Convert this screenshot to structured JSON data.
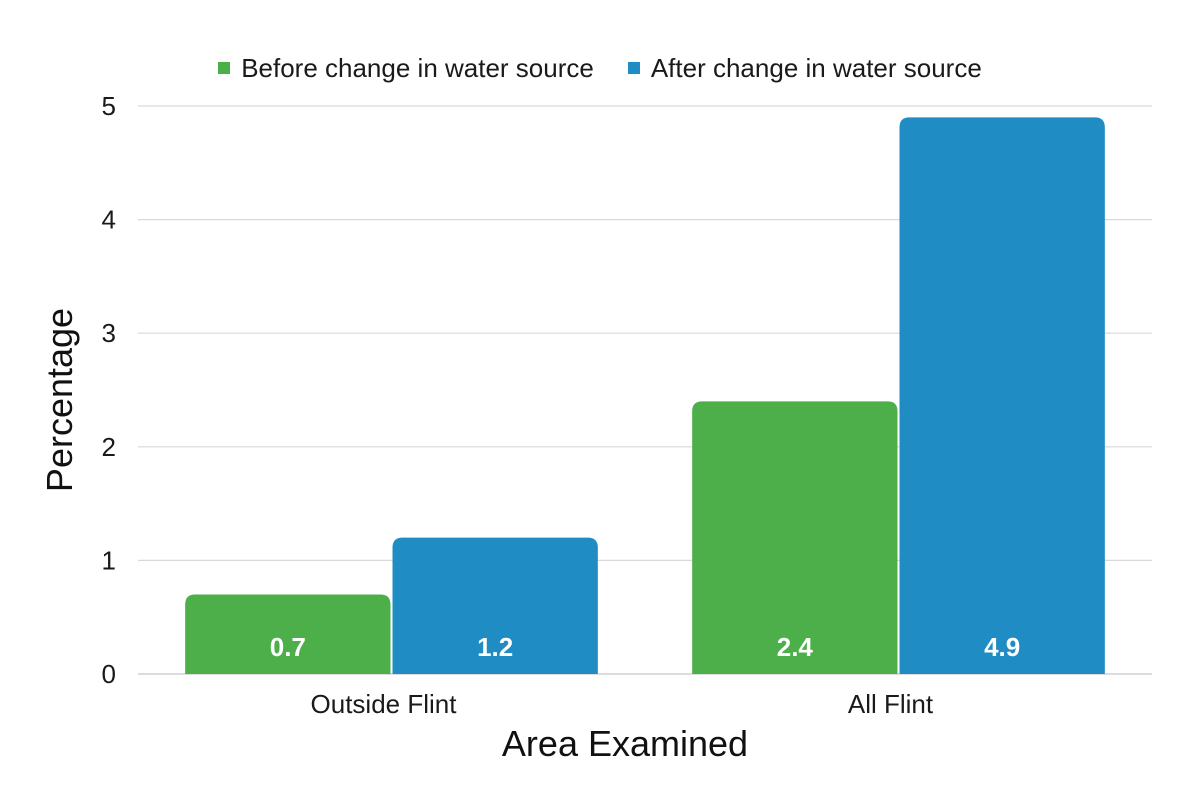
{
  "chart_data": {
    "type": "bar",
    "title": "",
    "xlabel": "Area Examined",
    "ylabel": "Percentage",
    "categories": [
      "Outside Flint",
      "All Flint"
    ],
    "series": [
      {
        "name": "Before change in water source",
        "color": "#4caf4a",
        "values": [
          0.7,
          2.4
        ]
      },
      {
        "name": "After change in water source",
        "color": "#1f8dc4",
        "values": [
          1.2,
          4.9
        ]
      }
    ],
    "ylim": [
      0,
      5
    ],
    "yticks": [
      0,
      1,
      2,
      3,
      4,
      5
    ],
    "grid": true,
    "legend_position": "top-center",
    "data_labels": true
  }
}
